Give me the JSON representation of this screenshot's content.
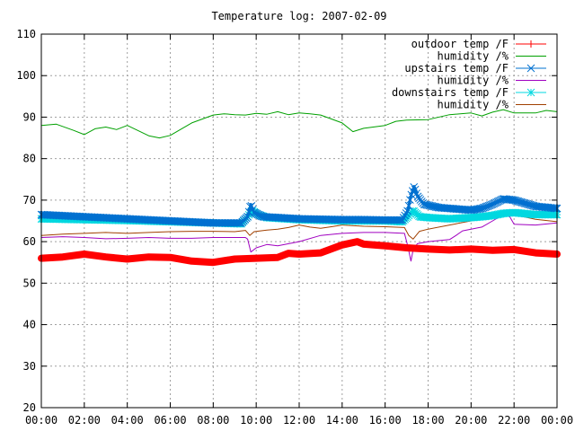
{
  "chart_data": {
    "type": "line",
    "title": "Temperature log: 2007-02-09",
    "xlabel": "",
    "ylabel": "",
    "ylim": [
      20,
      110
    ],
    "xlim": [
      0,
      24
    ],
    "grid": true,
    "legend_position": "top-right",
    "y_ticks": [
      "20",
      "30",
      "40",
      "50",
      "60",
      "70",
      "80",
      "90",
      "100",
      "110"
    ],
    "x_ticks": [
      "00:00",
      "02:00",
      "04:00",
      "06:00",
      "08:00",
      "10:00",
      "12:00",
      "14:00",
      "16:00",
      "18:00",
      "20:00",
      "22:00",
      "00:00"
    ],
    "x_units": "hours since 00:00",
    "series": [
      {
        "name": "outdoor temp /F",
        "color": "#ff0000",
        "marker": "plus",
        "x": [
          0,
          1,
          2,
          3,
          4,
          5,
          6,
          7,
          8,
          9,
          10,
          11,
          11.5,
          12,
          13,
          14,
          14.7,
          15,
          16,
          17,
          18,
          19,
          20,
          21,
          22,
          23,
          24
        ],
        "y": [
          56,
          56.3,
          57,
          56.3,
          55.8,
          56.3,
          56.2,
          55.3,
          55,
          55.8,
          56,
          56.2,
          57.2,
          57,
          57.3,
          59.2,
          60,
          59.4,
          59.0,
          58.5,
          58.2,
          58.0,
          58.2,
          57.9,
          58.1,
          57.3,
          57
        ]
      },
      {
        "name": "humidity /%",
        "color": "#00a000",
        "marker": "none",
        "x": [
          0,
          0.7,
          1.5,
          2,
          2.5,
          3,
          3.5,
          4,
          5,
          5.5,
          6,
          7,
          8,
          8.5,
          9,
          9.5,
          10,
          10.5,
          11,
          11.5,
          12,
          12.5,
          13,
          14,
          14.5,
          15,
          16,
          16.5,
          17,
          18,
          19,
          20,
          20.5,
          21,
          21.5,
          22,
          23,
          23.5,
          24
        ],
        "y": [
          88,
          88.3,
          86.8,
          85.8,
          87.2,
          87.6,
          87.0,
          88.0,
          85.5,
          85.0,
          85.6,
          88.6,
          90.5,
          90.8,
          90.6,
          90.5,
          90.9,
          90.7,
          91.3,
          90.6,
          91.0,
          90.8,
          90.5,
          88.6,
          86.5,
          87.3,
          88.0,
          89.0,
          89.3,
          89.4,
          90.6,
          91.0,
          90.3,
          91.2,
          91.8,
          91.0,
          91.0,
          91.6,
          91.3
        ]
      },
      {
        "name": "upstairs temp /F",
        "color": "#0070d0",
        "marker": "cross",
        "x": [
          0,
          2,
          4,
          6,
          8,
          9.3,
          9.6,
          9.75,
          9.9,
          10.3,
          11,
          12,
          13,
          14,
          15,
          16,
          16.8,
          17.05,
          17.2,
          17.35,
          17.5,
          17.8,
          18.5,
          19,
          20,
          20.5,
          21,
          21.5,
          22,
          23,
          24
        ],
        "y": [
          66.5,
          66,
          65.5,
          65,
          64.5,
          64.5,
          66,
          69,
          67,
          66,
          65.8,
          65.5,
          65.4,
          65.3,
          65.3,
          65.2,
          65.2,
          67.5,
          71,
          73.3,
          71,
          69,
          68.2,
          68,
          67.6,
          68,
          69,
          70.3,
          70,
          68.5,
          68
        ]
      },
      {
        "name": "humidity /%",
        "color": "#a000c0",
        "marker": "none",
        "x": [
          0,
          1,
          2,
          3,
          4,
          5,
          6,
          7,
          8,
          9,
          9.5,
          9.6,
          9.75,
          10,
          10.5,
          11,
          12,
          13,
          14,
          15,
          16,
          16.9,
          17.05,
          17.2,
          17.3,
          17.5,
          18,
          19,
          19.3,
          19.6,
          20,
          20.5,
          21,
          21.5,
          21.8,
          22,
          23,
          24
        ],
        "y": [
          61,
          61.2,
          61,
          60.7,
          60.8,
          61,
          60.8,
          60.8,
          61,
          61,
          61,
          60.6,
          57.5,
          58.5,
          59.3,
          59,
          60,
          61.5,
          62.0,
          62.2,
          62.2,
          62.0,
          59,
          55.3,
          58,
          59.5,
          60,
          60.5,
          61.5,
          62.6,
          63,
          63.5,
          65,
          66.5,
          66.0,
          64.2,
          64,
          64.5
        ]
      },
      {
        "name": "downstairs temp /F",
        "color": "#00d8e0",
        "marker": "star",
        "x": [
          0,
          2,
          4,
          6,
          8,
          9.3,
          9.6,
          9.8,
          10.1,
          10.5,
          12,
          14,
          16,
          16.8,
          17.05,
          17.3,
          17.6,
          18,
          19,
          20,
          20.5,
          21,
          21.5,
          22,
          23,
          24
        ],
        "y": [
          65.5,
          65.3,
          65.1,
          64.8,
          64.5,
          64.3,
          66,
          67.5,
          66.5,
          65.8,
          65.3,
          65.0,
          65.0,
          64.8,
          66,
          67.5,
          66,
          65.8,
          65.5,
          65.8,
          66,
          66.3,
          66.8,
          67,
          66.5,
          66.5
        ]
      },
      {
        "name": "humidity /%",
        "color": "#a04000",
        "marker": "none",
        "x": [
          0,
          1,
          2,
          3,
          4,
          5,
          6,
          7,
          8,
          9,
          9.5,
          9.7,
          9.9,
          10.5,
          11,
          11.5,
          12,
          12.5,
          13,
          13.5,
          14,
          15,
          16,
          16.9,
          17.1,
          17.3,
          17.6,
          18,
          19,
          19.5,
          20,
          20.5,
          21,
          21.5,
          22,
          23,
          24
        ],
        "y": [
          61.5,
          61.8,
          62,
          62.2,
          62,
          62.2,
          62.4,
          62.5,
          62.5,
          62.4,
          62.7,
          61.5,
          62.4,
          62.8,
          63,
          63.4,
          64.0,
          63.5,
          63.2,
          63.6,
          64.0,
          63.7,
          63.6,
          63.4,
          61.5,
          60.6,
          62.5,
          63.0,
          64.0,
          64.5,
          65.0,
          65.8,
          66.3,
          67.0,
          66.5,
          65.4,
          64.8
        ]
      }
    ]
  }
}
